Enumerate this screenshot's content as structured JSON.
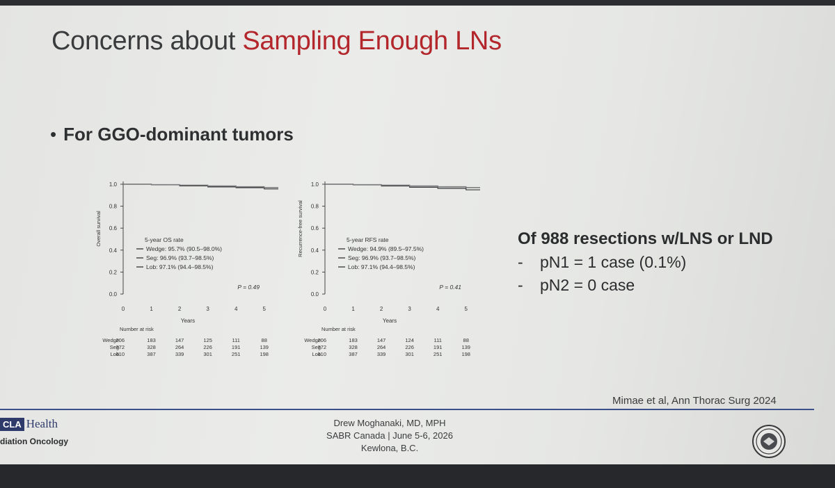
{
  "slide": {
    "title_plain": "Concerns about ",
    "title_accent": "Sampling Enough LNs",
    "bullet": "For GGO-dominant tumors",
    "results_heading": "Of 988 resections w/LNS or LND",
    "results": [
      {
        "dash": "-",
        "text": "pN1 = 1 case (0.1%)"
      },
      {
        "dash": "-",
        "text": "pN2 = 0 case"
      }
    ],
    "citation": "Mimae et al, Ann Thorac Surg 2024",
    "footer": {
      "logo_box": "CLA",
      "logo_health": "Health",
      "logo_dept": "diation Oncology",
      "presenter": [
        "Drew Moghanaki, MD, MPH",
        "SABR Canada | June 5-6, 2026",
        "Kewlona, B.C."
      ]
    },
    "colors": {
      "accent": "#b3262c",
      "footer_rule": "#3b4f8c",
      "text": "#2e2f31"
    }
  },
  "chart_data": [
    {
      "type": "line",
      "subtype": "kaplan-meier",
      "ylabel": "Overall survival",
      "xlabel": "Years",
      "xlim": [
        0,
        5.5
      ],
      "ylim": [
        0,
        1.0
      ],
      "xticks": [
        0,
        1,
        2,
        3,
        4,
        5
      ],
      "yticks": [
        0.0,
        0.2,
        0.4,
        0.6,
        0.8,
        1.0
      ],
      "ytick_labels": [
        "0.0",
        "0.2",
        "0.4",
        "0.6",
        "0.8",
        "1.0"
      ],
      "legend_title": "5-year OS rate",
      "legend_position": "center-left",
      "series": [
        {
          "name": "Wedge: 95.7% (90.5–98.0%)",
          "x": [
            0,
            1,
            2,
            3,
            4,
            5,
            5.5
          ],
          "y": [
            1.0,
            0.995,
            0.985,
            0.975,
            0.968,
            0.957,
            0.957
          ]
        },
        {
          "name": "Seg: 96.9% (93.7–98.5%)",
          "x": [
            0,
            1,
            2,
            3,
            4,
            5,
            5.5
          ],
          "y": [
            1.0,
            0.996,
            0.99,
            0.982,
            0.975,
            0.969,
            0.969
          ]
        },
        {
          "name": "Lob: 97.1% (94.4–98.5%)",
          "x": [
            0,
            1,
            2,
            3,
            4,
            5,
            5.5
          ],
          "y": [
            1.0,
            0.997,
            0.992,
            0.985,
            0.978,
            0.971,
            0.971
          ]
        }
      ],
      "annotation": "P = 0.49",
      "risk_table": {
        "title": "Number at risk",
        "rows": [
          {
            "label": "Wedge",
            "values": [
              206,
              183,
              147,
              125,
              111,
              88
            ]
          },
          {
            "label": "Seg",
            "values": [
              372,
              328,
              264,
              226,
              191,
              139
            ]
          },
          {
            "label": "Lob",
            "values": [
              410,
              387,
              339,
              301,
              251,
              198
            ]
          }
        ]
      }
    },
    {
      "type": "line",
      "subtype": "kaplan-meier",
      "ylabel": "Recurrence-free survival",
      "xlabel": "Years",
      "xlim": [
        0,
        5.5
      ],
      "ylim": [
        0,
        1.0
      ],
      "xticks": [
        0,
        1,
        2,
        3,
        4,
        5
      ],
      "yticks": [
        0.0,
        0.2,
        0.4,
        0.6,
        0.8,
        1.0
      ],
      "ytick_labels": [
        "0.0",
        "0.2",
        "0.4",
        "0.6",
        "0.8",
        "1.0"
      ],
      "legend_title": "5-year RFS rate",
      "legend_position": "center-left",
      "series": [
        {
          "name": "Wedge: 94.9% (89.5–97.5%)",
          "x": [
            0,
            1,
            2,
            3,
            4,
            5,
            5.5
          ],
          "y": [
            1.0,
            0.994,
            0.984,
            0.972,
            0.962,
            0.949,
            0.949
          ]
        },
        {
          "name": "Seg: 96.9% (93.7–98.5%)",
          "x": [
            0,
            1,
            2,
            3,
            4,
            5,
            5.5
          ],
          "y": [
            1.0,
            0.996,
            0.99,
            0.982,
            0.975,
            0.969,
            0.969
          ]
        },
        {
          "name": "Lob: 97.1% (94.4–98.5%)",
          "x": [
            0,
            1,
            2,
            3,
            4,
            5,
            5.5
          ],
          "y": [
            1.0,
            0.997,
            0.992,
            0.985,
            0.978,
            0.971,
            0.971
          ]
        }
      ],
      "annotation": "P = 0.41",
      "risk_table": {
        "title": "Number at risk",
        "rows": [
          {
            "label": "Wedge",
            "values": [
              206,
              183,
              147,
              124,
              111,
              88
            ]
          },
          {
            "label": "Seg",
            "values": [
              372,
              328,
              264,
              226,
              191,
              139
            ]
          },
          {
            "label": "Lob",
            "values": [
              410,
              387,
              339,
              301,
              251,
              198
            ]
          }
        ]
      }
    }
  ]
}
